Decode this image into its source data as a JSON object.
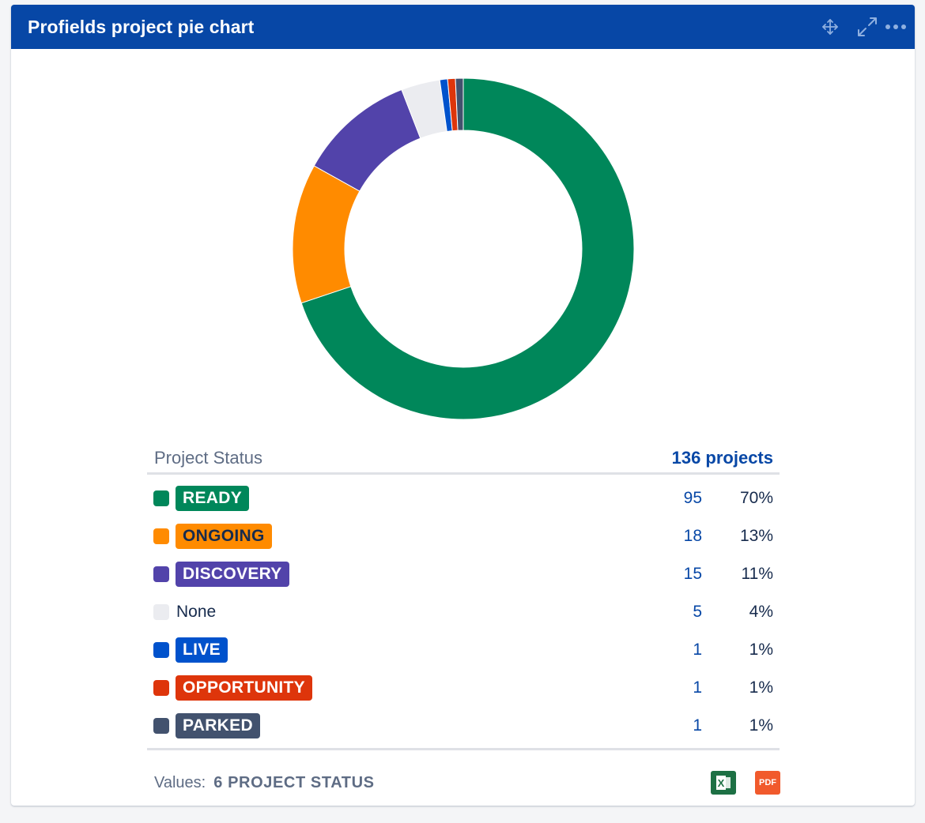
{
  "header": {
    "title": "Profields project pie chart",
    "icons": [
      "move-icon",
      "expand-icon",
      "more-icon"
    ]
  },
  "chart_data": {
    "type": "pie",
    "title": "",
    "categories": [
      "READY",
      "ONGOING",
      "DISCOVERY",
      "None",
      "LIVE",
      "OPPORTUNITY",
      "PARKED"
    ],
    "values": [
      95,
      18,
      15,
      5,
      1,
      1,
      1
    ],
    "colors": [
      "#00875a",
      "#ff8b00",
      "#5243aa",
      "#ebecf0",
      "#0052cc",
      "#de350b",
      "#42526e"
    ]
  },
  "table": {
    "column_label": "Project Status",
    "total": "136 projects",
    "rows": [
      {
        "label": "READY",
        "count": "95",
        "percent": "70%",
        "color": "#00875a",
        "text_color": "#ffffff",
        "lozenge": true
      },
      {
        "label": "ONGOING",
        "count": "18",
        "percent": "13%",
        "color": "#ff8b00",
        "text_color": "#172b4d",
        "lozenge": true
      },
      {
        "label": "DISCOVERY",
        "count": "15",
        "percent": "11%",
        "color": "#5243aa",
        "text_color": "#ffffff",
        "lozenge": true
      },
      {
        "label": "None",
        "count": "5",
        "percent": "4%",
        "color": "#ebecf0",
        "text_color": "#172b4d",
        "lozenge": false
      },
      {
        "label": "LIVE",
        "count": "1",
        "percent": "1%",
        "color": "#0052cc",
        "text_color": "#ffffff",
        "lozenge": true
      },
      {
        "label": "OPPORTUNITY",
        "count": "1",
        "percent": "1%",
        "color": "#de350b",
        "text_color": "#ffffff",
        "lozenge": true
      },
      {
        "label": "PARKED",
        "count": "1",
        "percent": "1%",
        "color": "#42526e",
        "text_color": "#ffffff",
        "lozenge": true
      }
    ]
  },
  "footer": {
    "values_label": "Values:",
    "values_text": "6 PROJECT STATUS",
    "excel_icon_text": "X",
    "pdf_icon_text": "PDF"
  }
}
